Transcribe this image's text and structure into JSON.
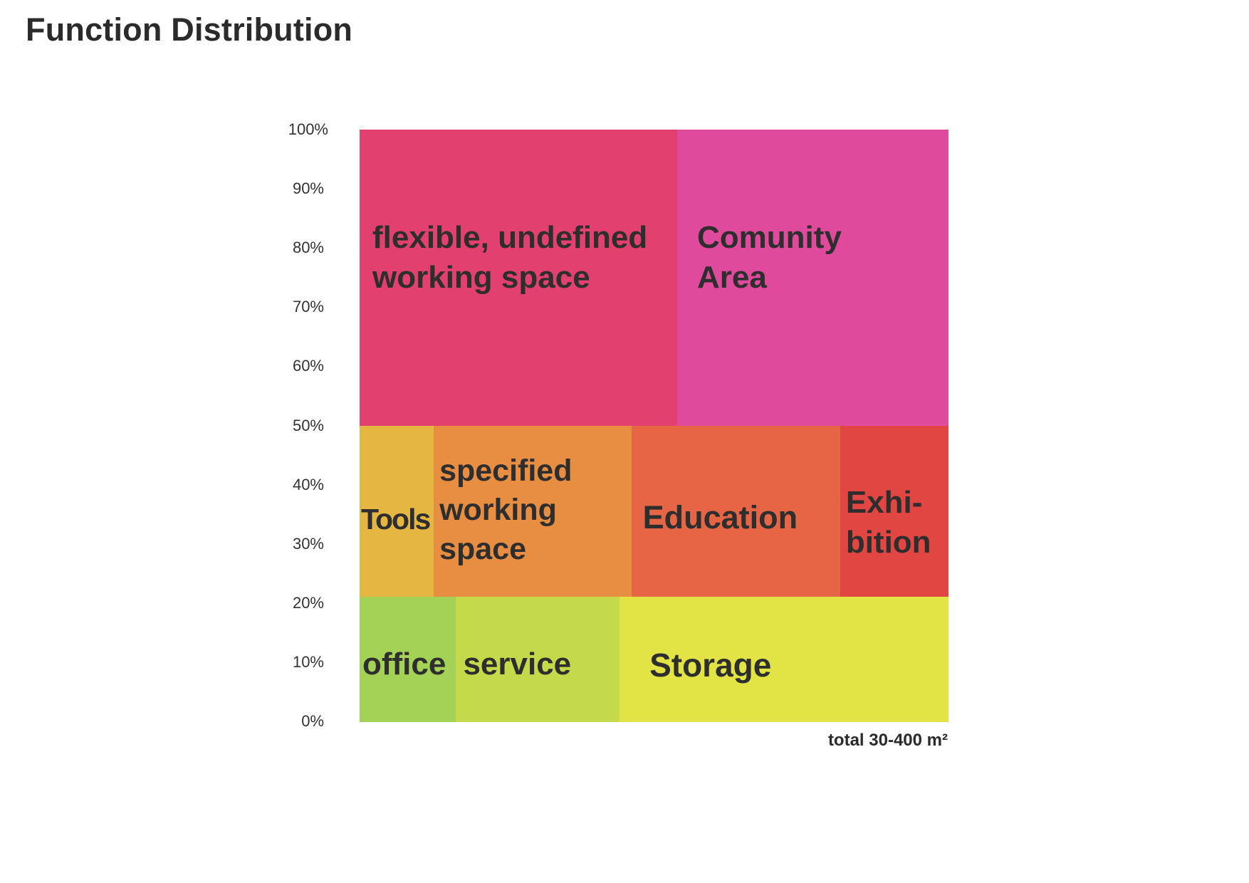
{
  "chart_data": {
    "type": "treemap",
    "title": "Function Distribution",
    "yticks": [
      "100%",
      "90%",
      "80%",
      "70%",
      "60%",
      "50%",
      "40%",
      "30%",
      "20%",
      "10%",
      "0%"
    ],
    "ylim": [
      0,
      100
    ],
    "footer": "total 30-400 m²",
    "rows": [
      {
        "y_from": 50,
        "y_to": 100,
        "cells": [
          {
            "label": "flexible, undefined\nworking space",
            "share": 0.54,
            "color": "#e2406e"
          },
          {
            "label": "Comunity\nArea",
            "share": 0.46,
            "color": "#e04a9c"
          }
        ]
      },
      {
        "y_from": 21,
        "y_to": 50,
        "cells": [
          {
            "label": "Tools",
            "share": 0.126,
            "color": "#e6b642"
          },
          {
            "label": "specified\nworking\nspace",
            "share": 0.336,
            "color": "#e88e42"
          },
          {
            "label": "Education",
            "share": 0.355,
            "color": "#e56544"
          },
          {
            "label": "Exhi-\nbition",
            "share": 0.183,
            "color": "#e14643"
          }
        ]
      },
      {
        "y_from": 0,
        "y_to": 21,
        "cells": [
          {
            "label": "office",
            "share": 0.164,
            "color": "#a4d256"
          },
          {
            "label": "service",
            "share": 0.278,
            "color": "#c5da4a"
          },
          {
            "label": "Storage",
            "share": 0.558,
            "color": "#e1e444"
          }
        ]
      }
    ]
  }
}
